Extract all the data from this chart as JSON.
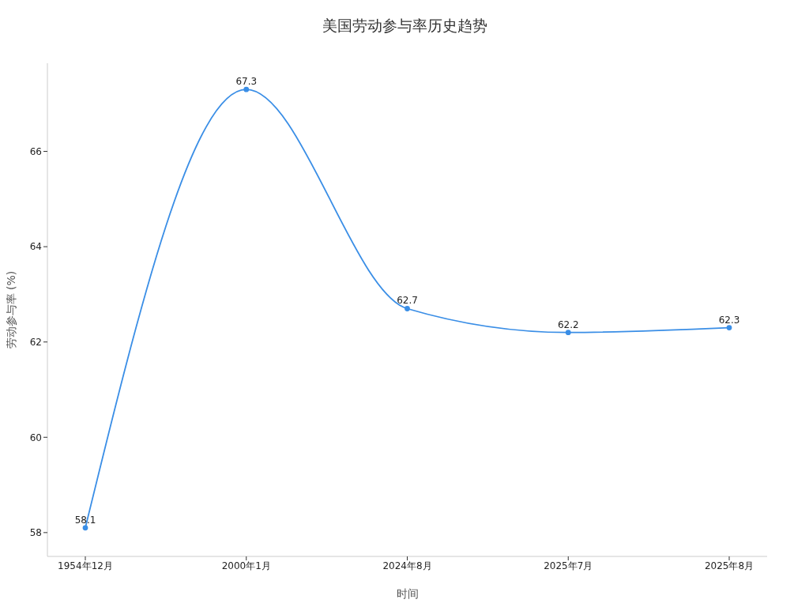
{
  "chart_data": {
    "type": "line",
    "title": "美国劳动参与率历史趋势",
    "xlabel": "时间",
    "ylabel": "劳动参与率 (%)",
    "categories": [
      "1954年12月",
      "2000年1月",
      "2024年8月",
      "2025年7月",
      "2025年8月"
    ],
    "series": [
      {
        "color": "#3a8ee6",
        "values": [
          58.1,
          67.3,
          62.7,
          62.2,
          62.3
        ]
      }
    ],
    "ylim": [
      57.5,
      67.85
    ],
    "yticks": [
      58,
      60,
      62,
      64,
      66
    ],
    "data_labels": true,
    "marker": "circle",
    "line_style": "solid",
    "grid": false,
    "legend": false
  }
}
